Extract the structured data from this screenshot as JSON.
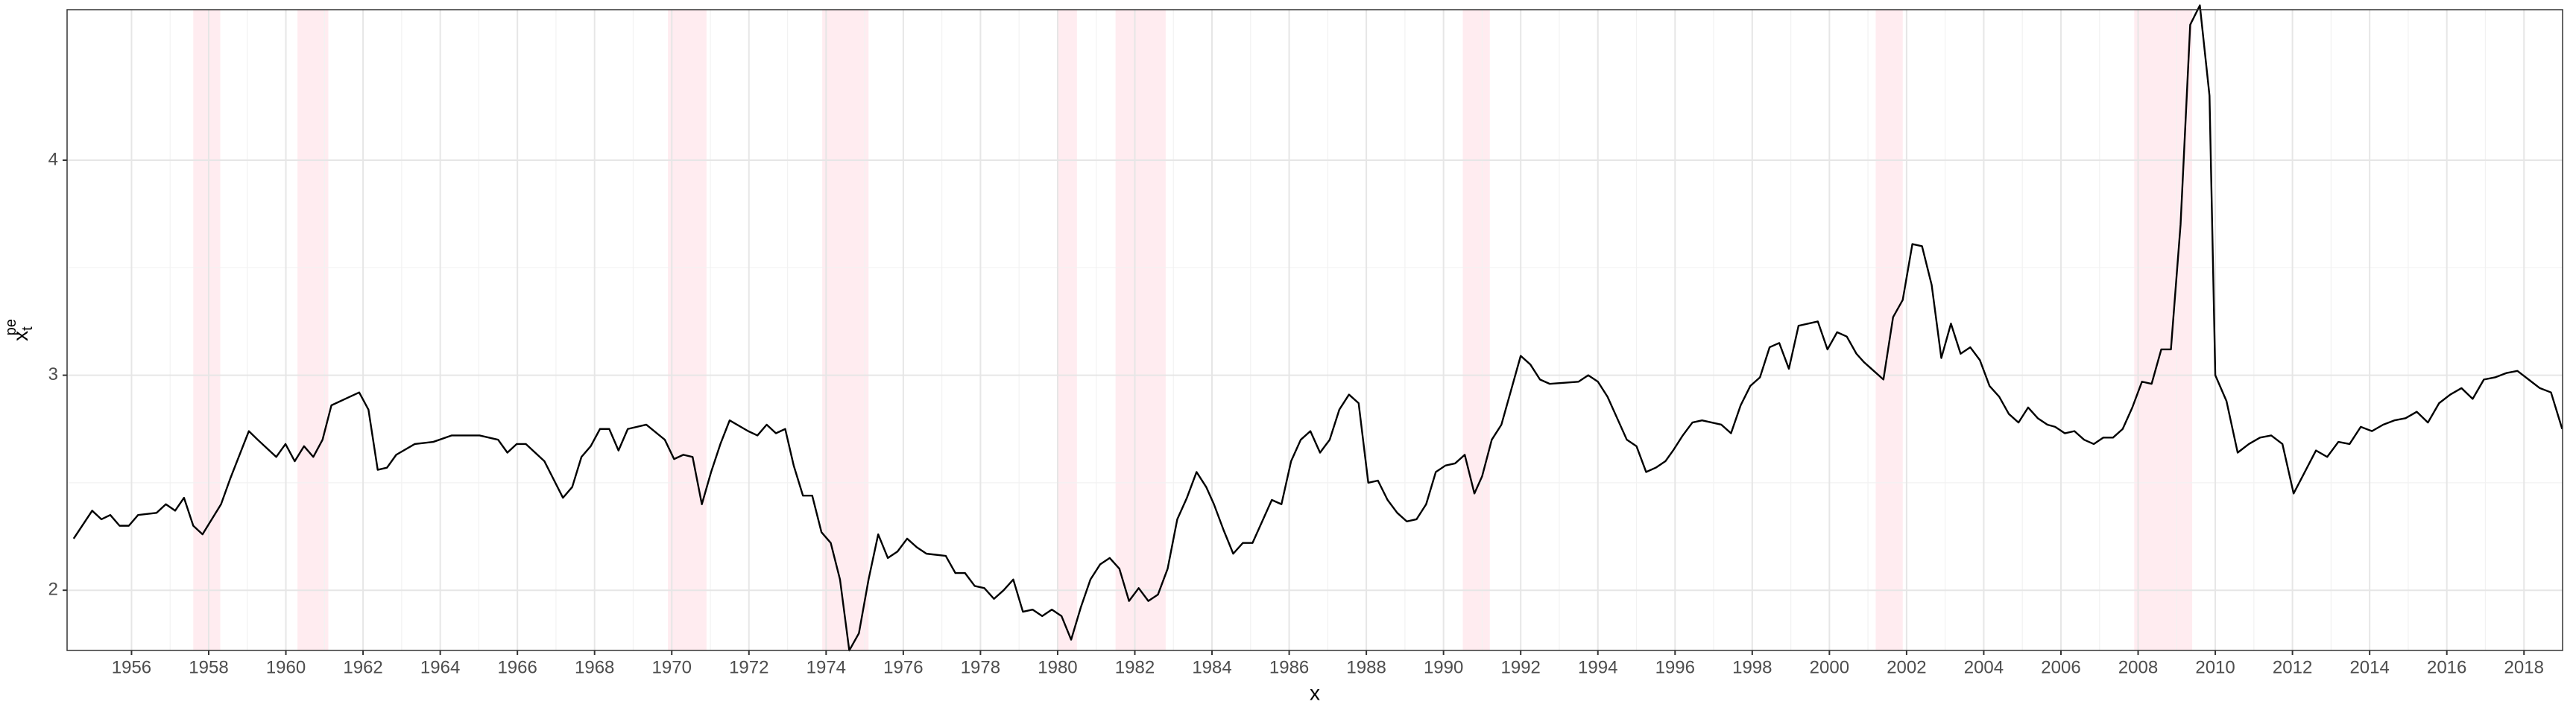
{
  "chart_data": {
    "type": "line",
    "x_label": "x",
    "y_label": {
      "base": "x",
      "sub": "t",
      "sup": "pe"
    },
    "xlim": [
      1954.33,
      2019.0
    ],
    "ylim": [
      1.72,
      4.7
    ],
    "xticks": [
      1956,
      1958,
      1960,
      1962,
      1964,
      1966,
      1968,
      1970,
      1972,
      1974,
      1976,
      1978,
      1980,
      1982,
      1984,
      1986,
      1988,
      1990,
      1992,
      1994,
      1996,
      1998,
      2000,
      2002,
      2004,
      2006,
      2008,
      2010,
      2012,
      2014,
      2016,
      2018
    ],
    "yticks": [
      2,
      3,
      4
    ],
    "grid": true,
    "shaded_color": "#ffe4ea",
    "shaded_regions": [
      [
        1957.6,
        1958.3
      ],
      [
        1960.3,
        1961.1
      ],
      [
        1969.9,
        1970.9
      ],
      [
        1973.9,
        1975.1
      ],
      [
        1980.0,
        1980.5
      ],
      [
        1981.5,
        1982.8
      ],
      [
        1990.5,
        1991.2
      ],
      [
        2001.2,
        2001.9
      ],
      [
        2007.9,
        2009.4
      ]
    ],
    "series": [
      {
        "color": "#000000",
        "x": [
          1954.5,
          1954.98,
          1955.22,
          1955.45,
          1955.69,
          1955.93,
          1956.17,
          1956.65,
          1956.89,
          1957.13,
          1957.36,
          1957.6,
          1957.84,
          1958.32,
          1958.56,
          1959.04,
          1959.27,
          1959.75,
          1959.99,
          1960.23,
          1960.47,
          1960.71,
          1960.95,
          1961.18,
          1961.66,
          1961.9,
          1962.14,
          1962.38,
          1962.62,
          1962.86,
          1963.34,
          1963.82,
          1964.3,
          1965.02,
          1965.5,
          1965.74,
          1965.98,
          1966.22,
          1966.7,
          1967.18,
          1967.42,
          1967.66,
          1967.9,
          1968.14,
          1968.38,
          1968.62,
          1968.86,
          1969.34,
          1969.82,
          1970.06,
          1970.3,
          1970.54,
          1970.78,
          1971.02,
          1971.26,
          1971.5,
          1971.98,
          1972.22,
          1972.46,
          1972.7,
          1972.94,
          1973.16,
          1973.4,
          1973.64,
          1973.88,
          1974.12,
          1974.36,
          1974.6,
          1974.85,
          1975.1,
          1975.35,
          1975.6,
          1975.85,
          1976.1,
          1976.35,
          1976.6,
          1977.1,
          1977.35,
          1977.6,
          1977.85,
          1978.1,
          1978.35,
          1978.6,
          1978.85,
          1979.1,
          1979.35,
          1979.6,
          1979.85,
          1980.1,
          1980.35,
          1980.6,
          1980.85,
          1981.1,
          1981.35,
          1981.6,
          1981.85,
          1982.1,
          1982.35,
          1982.6,
          1982.85,
          1983.1,
          1983.35,
          1983.6,
          1983.85,
          1984.05,
          1984.3,
          1984.55,
          1984.8,
          1985.05,
          1985.55,
          1985.8,
          1986.05,
          1986.3,
          1986.55,
          1986.8,
          1987.05,
          1987.3,
          1987.55,
          1987.8,
          1988.05,
          1988.3,
          1988.55,
          1988.8,
          1989.05,
          1989.3,
          1989.55,
          1989.8,
          1990.05,
          1990.3,
          1990.55,
          1990.8,
          1991.0,
          1991.25,
          1991.5,
          1991.75,
          1992.0,
          1992.25,
          1992.5,
          1992.75,
          1993.5,
          1993.75,
          1994.0,
          1994.25,
          1994.5,
          1994.75,
          1995.0,
          1995.25,
          1995.5,
          1995.75,
          1995.95,
          1996.2,
          1996.45,
          1996.7,
          1996.95,
          1997.2,
          1997.45,
          1997.7,
          1997.95,
          1998.2,
          1998.45,
          1998.7,
          1998.95,
          1999.2,
          1999.7,
          1999.95,
          2000.2,
          2000.45,
          2000.7,
          2000.9,
          2001.15,
          2001.4,
          2001.65,
          2001.9,
          2002.15,
          2002.4,
          2002.65,
          2002.9,
          2003.15,
          2003.4,
          2003.65,
          2003.9,
          2004.15,
          2004.4,
          2004.65,
          2004.9,
          2005.15,
          2005.4,
          2005.65,
          2005.85,
          2006.1,
          2006.35,
          2006.6,
          2006.85,
          2007.1,
          2007.35,
          2007.6,
          2007.85,
          2008.1,
          2008.35,
          2008.6,
          2008.85,
          2009.1,
          2009.35,
          2009.6,
          2009.85,
          2010.0,
          2010.29,
          2010.58,
          2010.87,
          2011.16,
          2011.45,
          2011.74,
          2012.03,
          2012.32,
          2012.61,
          2012.9,
          2013.19,
          2013.48,
          2013.77,
          2014.06,
          2014.35,
          2014.64,
          2014.93,
          2015.22,
          2015.51,
          2015.8,
          2016.09,
          2016.38,
          2016.67,
          2016.96,
          2017.25,
          2017.54,
          2017.83,
          2018.12,
          2018.41,
          2018.7,
          2018.99
        ],
        "values": [
          2.24,
          2.37,
          2.33,
          2.35,
          2.3,
          2.3,
          2.35,
          2.36,
          2.4,
          2.37,
          2.43,
          2.3,
          2.26,
          2.4,
          2.52,
          2.74,
          2.7,
          2.62,
          2.68,
          2.6,
          2.67,
          2.62,
          2.7,
          2.86,
          2.9,
          2.92,
          2.84,
          2.56,
          2.57,
          2.63,
          2.68,
          2.69,
          2.72,
          2.72,
          2.7,
          2.64,
          2.68,
          2.68,
          2.6,
          2.43,
          2.48,
          2.62,
          2.67,
          2.75,
          2.75,
          2.65,
          2.75,
          2.77,
          2.7,
          2.61,
          2.63,
          2.62,
          2.4,
          2.55,
          2.68,
          2.79,
          2.74,
          2.72,
          2.77,
          2.73,
          2.75,
          2.58,
          2.44,
          2.44,
          2.27,
          2.22,
          2.05,
          1.72,
          1.8,
          2.05,
          2.26,
          2.15,
          2.18,
          2.24,
          2.2,
          2.17,
          2.16,
          2.08,
          2.08,
          2.02,
          2.01,
          1.96,
          2.0,
          2.05,
          1.9,
          1.91,
          1.88,
          1.91,
          1.88,
          1.77,
          1.92,
          2.05,
          2.12,
          2.15,
          2.1,
          1.95,
          2.01,
          1.95,
          1.98,
          2.1,
          2.33,
          2.43,
          2.55,
          2.48,
          2.4,
          2.28,
          2.17,
          2.22,
          2.22,
          2.42,
          2.4,
          2.6,
          2.7,
          2.74,
          2.64,
          2.7,
          2.84,
          2.91,
          2.87,
          2.5,
          2.51,
          2.42,
          2.36,
          2.32,
          2.33,
          2.4,
          2.55,
          2.58,
          2.59,
          2.63,
          2.45,
          2.53,
          2.7,
          2.77,
          2.93,
          3.09,
          3.05,
          2.98,
          2.96,
          2.97,
          3.0,
          2.97,
          2.9,
          2.8,
          2.7,
          2.67,
          2.55,
          2.57,
          2.6,
          2.65,
          2.72,
          2.78,
          2.79,
          2.78,
          2.77,
          2.73,
          2.86,
          2.95,
          2.99,
          3.13,
          3.15,
          3.03,
          3.23,
          3.25,
          3.12,
          3.2,
          3.18,
          3.1,
          3.06,
          3.02,
          2.98,
          3.27,
          3.35,
          3.61,
          3.6,
          3.42,
          3.08,
          3.24,
          3.1,
          3.13,
          3.07,
          2.95,
          2.9,
          2.82,
          2.78,
          2.85,
          2.8,
          2.77,
          2.76,
          2.73,
          2.74,
          2.7,
          2.68,
          2.71,
          2.71,
          2.75,
          2.85,
          2.97,
          2.96,
          3.12,
          3.12,
          3.7,
          4.63,
          4.72,
          4.3,
          3.0,
          2.88,
          2.64,
          2.68,
          2.71,
          2.72,
          2.68,
          2.45,
          2.55,
          2.65,
          2.62,
          2.69,
          2.68,
          2.76,
          2.74,
          2.77,
          2.79,
          2.8,
          2.83,
          2.78,
          2.87,
          2.91,
          2.94,
          2.89,
          2.98,
          2.99,
          3.01,
          3.02,
          2.98,
          2.94,
          2.92,
          2.75
        ]
      }
    ]
  }
}
